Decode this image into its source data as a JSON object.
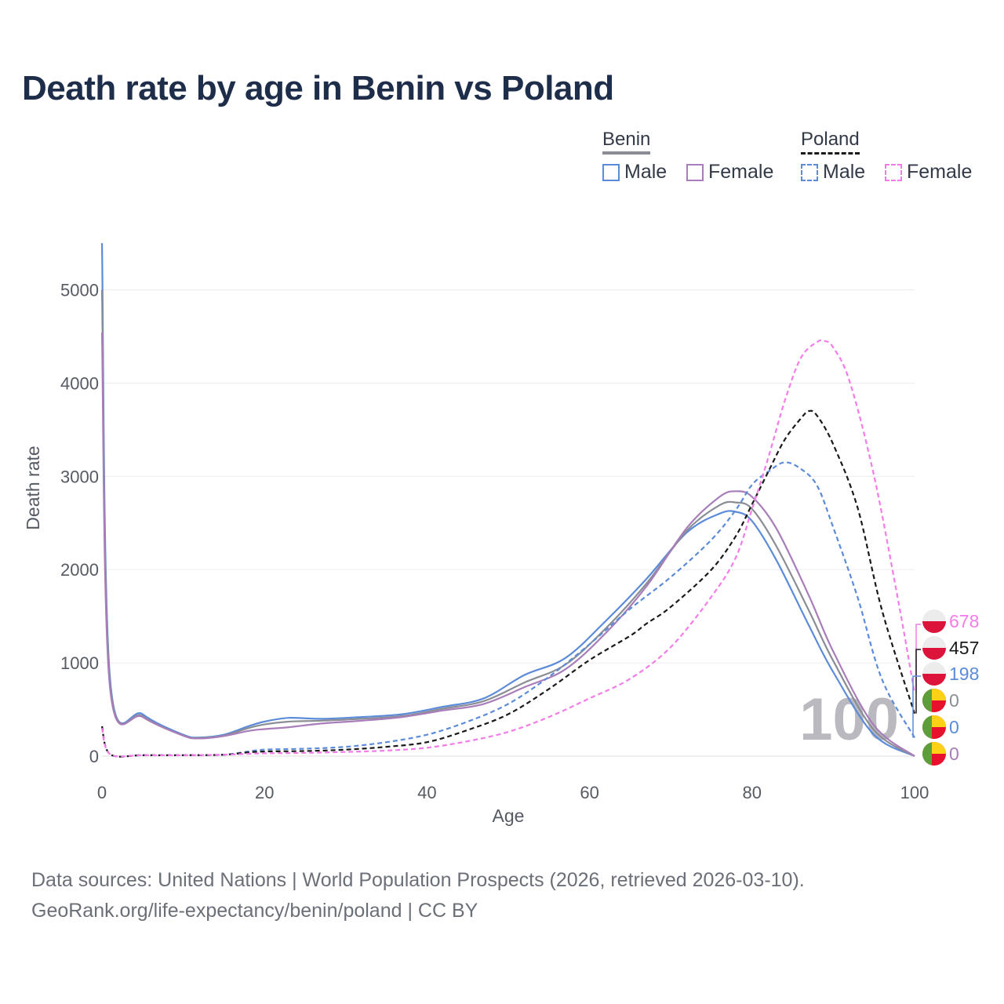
{
  "title": "Death rate by age in Benin vs Poland",
  "legend": {
    "groups": [
      {
        "name": "Benin",
        "style": "solid",
        "items": [
          {
            "label": "Male",
            "color": "#5b8bd9"
          },
          {
            "label": "Female",
            "color": "#a87db9"
          }
        ]
      },
      {
        "name": "Poland",
        "style": "dashed",
        "items": [
          {
            "label": "Male",
            "color": "#5b8bd9"
          },
          {
            "label": "Female",
            "color": "#f47ce8"
          }
        ]
      }
    ]
  },
  "footer": {
    "line1": "Data sources: United Nations | World Population Prospects (2026, retrieved 2026-03-10).",
    "line2": "GeoRank.org/life-expectancy/benin/poland | CC BY"
  },
  "chart_data": {
    "type": "line",
    "title": "Death rate by age in Benin vs Poland",
    "xlabel": "Age",
    "ylabel": "Death rate",
    "xlim": [
      0,
      100
    ],
    "ylim": [
      0,
      5500
    ],
    "xticks": [
      0,
      20,
      40,
      60,
      80,
      100
    ],
    "yticks": [
      0,
      1000,
      2000,
      3000,
      4000,
      5000
    ],
    "year_watermark": "100",
    "series": [
      {
        "name": "Benin Male",
        "country": "Benin",
        "sex": "Male",
        "color": "#5b8bd9",
        "dash": false,
        "x": [
          0,
          1,
          5,
          10,
          12,
          15,
          18,
          20,
          23,
          27,
          32,
          37,
          42,
          47,
          52,
          57,
          62,
          67,
          72,
          76,
          78,
          80,
          83,
          87,
          90,
          95,
          100
        ],
        "y": [
          5500,
          820,
          450,
          230,
          200,
          230,
          320,
          370,
          410,
          400,
          420,
          450,
          530,
          620,
          870,
          1050,
          1450,
          1900,
          2400,
          2600,
          2620,
          2520,
          2100,
          1400,
          900,
          230,
          0
        ]
      },
      {
        "name": "Benin Both",
        "country": "Benin",
        "sex": "Both",
        "color": "#8a8d94",
        "dash": false,
        "x": [
          0,
          1,
          5,
          10,
          12,
          15,
          18,
          20,
          23,
          27,
          32,
          37,
          42,
          47,
          52,
          57,
          62,
          67,
          72,
          76,
          78,
          80,
          83,
          87,
          90,
          95,
          100
        ],
        "y": [
          5000,
          770,
          430,
          220,
          195,
          220,
          300,
          340,
          370,
          380,
          400,
          430,
          510,
          590,
          790,
          980,
          1370,
          1850,
          2420,
          2690,
          2720,
          2650,
          2250,
          1560,
          1020,
          280,
          0
        ]
      },
      {
        "name": "Benin Female",
        "country": "Benin",
        "sex": "Female",
        "color": "#a87db9",
        "dash": false,
        "x": [
          0,
          1,
          5,
          10,
          12,
          15,
          18,
          20,
          23,
          27,
          32,
          37,
          42,
          47,
          52,
          57,
          62,
          67,
          72,
          76,
          78,
          80,
          83,
          87,
          90,
          95,
          100
        ],
        "y": [
          4540,
          720,
          420,
          220,
          190,
          215,
          270,
          290,
          310,
          350,
          380,
          420,
          490,
          560,
          740,
          930,
          1320,
          1820,
          2450,
          2780,
          2840,
          2780,
          2440,
          1720,
          1120,
          330,
          0
        ]
      },
      {
        "name": "Poland Male",
        "country": "Poland",
        "sex": "Male",
        "color": "#5b8bd9",
        "dash": true,
        "x": [
          0,
          1,
          5,
          10,
          15,
          18,
          20,
          25,
          30,
          35,
          40,
          45,
          50,
          55,
          60,
          65,
          70,
          75,
          78,
          80,
          82,
          84,
          86,
          88,
          90,
          93,
          96,
          100
        ],
        "y": [
          320,
          20,
          10,
          10,
          15,
          50,
          70,
          80,
          100,
          150,
          230,
          370,
          560,
          850,
          1200,
          1580,
          1920,
          2320,
          2640,
          2910,
          3050,
          3150,
          3080,
          2900,
          2450,
          1700,
          820,
          198
        ]
      },
      {
        "name": "Poland Both",
        "country": "Poland",
        "sex": "Both",
        "color": "#1a1a1a",
        "dash": true,
        "x": [
          0,
          1,
          5,
          10,
          15,
          18,
          20,
          25,
          30,
          35,
          40,
          45,
          50,
          55,
          60,
          65,
          67,
          70,
          75,
          78,
          80,
          82,
          84,
          86,
          87,
          88,
          90,
          93,
          96,
          100
        ],
        "y": [
          320,
          20,
          10,
          10,
          15,
          40,
          50,
          55,
          70,
          100,
          150,
          280,
          450,
          720,
          1030,
          1290,
          1420,
          1600,
          2000,
          2360,
          2700,
          3050,
          3390,
          3620,
          3700,
          3650,
          3340,
          2660,
          1560,
          457
        ]
      },
      {
        "name": "Poland Female",
        "country": "Poland",
        "sex": "Female",
        "color": "#f47ce8",
        "dash": true,
        "x": [
          0,
          1,
          5,
          10,
          15,
          18,
          20,
          25,
          30,
          35,
          40,
          45,
          50,
          55,
          60,
          65,
          70,
          75,
          78,
          80,
          82,
          84,
          86,
          88,
          89,
          90,
          92,
          95,
          98,
          100
        ],
        "y": [
          300,
          20,
          10,
          10,
          15,
          25,
          30,
          35,
          45,
          60,
          90,
          160,
          260,
          420,
          620,
          830,
          1170,
          1710,
          2130,
          2650,
          3200,
          3800,
          4270,
          4440,
          4450,
          4380,
          4020,
          3010,
          1660,
          678
        ]
      }
    ],
    "end_labels": [
      {
        "value": "678",
        "color": "#f47ce8",
        "flag": "Poland"
      },
      {
        "value": "457",
        "color": "#1a1a1a",
        "flag": "Poland"
      },
      {
        "value": "198",
        "color": "#5b8bd9",
        "flag": "Poland"
      },
      {
        "value": "0",
        "color": "#8a8d94",
        "flag": "Benin"
      },
      {
        "value": "0",
        "color": "#5b8bd9",
        "flag": "Benin"
      },
      {
        "value": "0",
        "color": "#a87db9",
        "flag": "Benin"
      }
    ]
  }
}
